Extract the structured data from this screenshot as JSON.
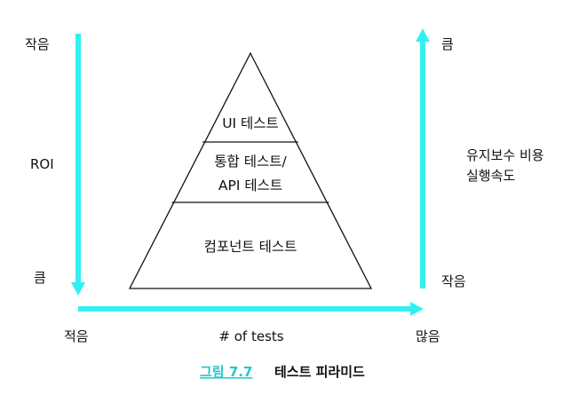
{
  "diagram": {
    "colors": {
      "arrow": "#33f0f0",
      "caption_accent": "#22c7c7",
      "outline": "#111111"
    },
    "left_axis": {
      "top_label": "작음",
      "middle_label": "ROI",
      "bottom_label": "큼"
    },
    "right_axis": {
      "top_label": "큼",
      "middle_label_line1": "유지보수 비용",
      "middle_label_line2": "실행속도",
      "bottom_label": "작음"
    },
    "bottom_axis": {
      "left_label": "적음",
      "middle_label": "# of tests",
      "right_label": "많음"
    },
    "pyramid": {
      "top_tier": "UI 테스트",
      "middle_tier_line1": "통합 테스트/",
      "middle_tier_line2": "API 테스트",
      "bottom_tier": "컴포넌트 테스트"
    },
    "caption": {
      "number": "그림 7.7",
      "title": "테스트 피라미드"
    }
  }
}
